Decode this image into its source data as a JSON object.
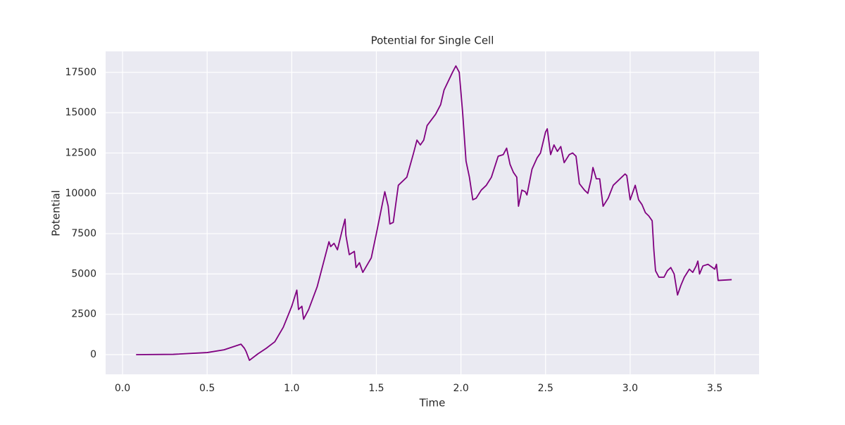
{
  "chart_data": {
    "type": "line",
    "title": "Potential for Single Cell",
    "xlabel": "Time",
    "ylabel": "Potential",
    "grid": true,
    "background": "#eaeaf2",
    "xlim": [
      -0.1,
      3.762
    ],
    "ylim": [
      -1220,
      18800
    ],
    "xticks": [
      {
        "value": 0,
        "label": "0.0"
      },
      0.5,
      {
        "value": 1,
        "label": "1.0"
      },
      1.5,
      {
        "value": 2,
        "label": "2.0"
      },
      2.5,
      {
        "value": 3,
        "label": "3.0"
      },
      3.5
    ],
    "yticks": [
      0,
      2500,
      5000,
      7500,
      10000,
      12500,
      15000,
      17500
    ],
    "series": [
      {
        "color": "#800080",
        "x": [
          0.08,
          0.3,
          0.5,
          0.6,
          0.7,
          0.72,
          0.73,
          0.75,
          0.8,
          0.85,
          0.9,
          0.95,
          1.0,
          1.03,
          1.04,
          1.06,
          1.07,
          1.1,
          1.15,
          1.2,
          1.22,
          1.23,
          1.25,
          1.27,
          1.3,
          1.315,
          1.32,
          1.34,
          1.37,
          1.38,
          1.4,
          1.42,
          1.47,
          1.5,
          1.55,
          1.57,
          1.58,
          1.6,
          1.63,
          1.68,
          1.72,
          1.74,
          1.76,
          1.78,
          1.8,
          1.85,
          1.88,
          1.9,
          1.95,
          1.97,
          1.99,
          2.01,
          2.03,
          2.05,
          2.07,
          2.09,
          2.12,
          2.15,
          2.18,
          2.22,
          2.25,
          2.27,
          2.29,
          2.31,
          2.33,
          2.34,
          2.36,
          2.38,
          2.39,
          2.42,
          2.45,
          2.47,
          2.5,
          2.51,
          2.53,
          2.55,
          2.57,
          2.59,
          2.61,
          2.64,
          2.66,
          2.68,
          2.7,
          2.73,
          2.75,
          2.77,
          2.78,
          2.8,
          2.82,
          2.84,
          2.87,
          2.9,
          2.93,
          2.95,
          2.97,
          2.98,
          3.0,
          3.03,
          3.05,
          3.07,
          3.09,
          3.11,
          3.13,
          3.14,
          3.15,
          3.17,
          3.2,
          3.22,
          3.24,
          3.26,
          3.28,
          3.3,
          3.32,
          3.35,
          3.37,
          3.39,
          3.4,
          3.41,
          3.43,
          3.46,
          3.5,
          3.51,
          3.52,
          3.6
        ],
        "values": [
          0,
          20,
          130,
          300,
          650,
          400,
          200,
          -350,
          50,
          400,
          800,
          1700,
          3000,
          4000,
          2800,
          3000,
          2200,
          2800,
          4200,
          6200,
          7000,
          6700,
          6900,
          6500,
          7800,
          8400,
          7400,
          6200,
          6400,
          5400,
          5700,
          5100,
          6000,
          7500,
          10100,
          9200,
          8100,
          8200,
          10500,
          11000,
          12500,
          13300,
          13000,
          13300,
          14200,
          14900,
          15500,
          16400,
          17500,
          17900,
          17500,
          15000,
          12000,
          11000,
          9600,
          9700,
          10200,
          10500,
          11000,
          12300,
          12400,
          12800,
          11800,
          11300,
          11000,
          9200,
          10200,
          10100,
          9900,
          11500,
          12200,
          12500,
          13800,
          14000,
          12400,
          13000,
          12600,
          12900,
          11900,
          12400,
          12500,
          12300,
          10600,
          10200,
          10000,
          10900,
          11600,
          10900,
          10900,
          9200,
          9700,
          10500,
          10800,
          11000,
          11200,
          11100,
          9600,
          10500,
          9600,
          9300,
          8800,
          8600,
          8300,
          6500,
          5200,
          4800,
          4800,
          5200,
          5400,
          5000,
          3700,
          4300,
          4800,
          5300,
          5100,
          5500,
          5800,
          5000,
          5500,
          5600,
          5300,
          5600,
          4600,
          4650
        ]
      }
    ]
  }
}
